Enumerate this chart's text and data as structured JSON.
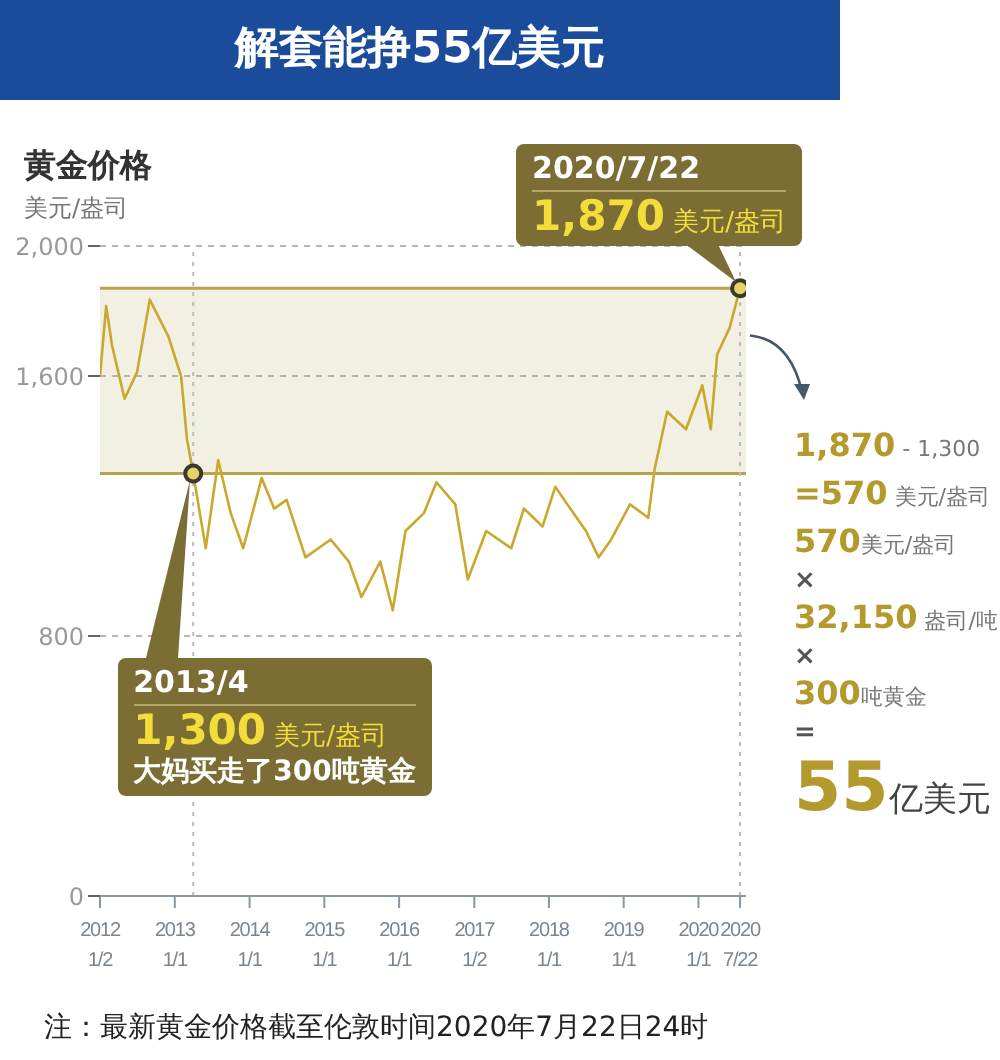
{
  "chart_data": {
    "type": "line",
    "title": "解套能挣55亿美元",
    "subtitle": "美元/盎司",
    "ylabel": "黄金价格",
    "x": [
      "2012-01-02",
      "2012-02",
      "2012-03",
      "2012-05",
      "2012-07",
      "2012-09",
      "2012-12",
      "2013-02",
      "2013-03",
      "2013-04",
      "2013-06",
      "2013-08",
      "2013-10",
      "2013-12",
      "2014-03",
      "2014-05",
      "2014-07",
      "2014-10",
      "2015-02",
      "2015-05",
      "2015-07",
      "2015-10",
      "2015-12",
      "2016-02",
      "2016-05",
      "2016-07",
      "2016-10",
      "2016-12",
      "2017-03",
      "2017-07",
      "2017-09",
      "2017-12",
      "2018-02",
      "2018-04",
      "2018-07",
      "2018-09",
      "2018-11",
      "2019-02",
      "2019-05",
      "2019-06",
      "2019-08",
      "2019-11",
      "2020-01-20",
      "2020-03",
      "2020-04",
      "2020-06",
      "2020-07-22"
    ],
    "series": [
      {
        "color": "#c9a82c",
        "values": [
          1599,
          1815,
          1693,
          1530,
          1612,
          1835,
          1721,
          1599,
          1408,
          1300,
          1070,
          1341,
          1178,
          1070,
          1286,
          1192,
          1219,
          1042,
          1097,
          1029,
          920,
          1029,
          879,
          1123,
          1178,
          1273,
          1205,
          974,
          1123,
          1070,
          1192,
          1137,
          1259,
          1205,
          1123,
          1042,
          1097,
          1205,
          1164,
          1314,
          1490,
          1436,
          1571,
          1436,
          1666,
          1748,
          1870
        ]
      },
      {
        "type": "scatter",
        "color": "#3a3a28",
        "x": [
          "2013-04",
          "2020-07-22"
        ],
        "values": [
          1300,
          1870
        ]
      }
    ],
    "xlim": [
      "2012-01-02",
      "2020-08-20"
    ],
    "xticks": [
      {
        "value": "2012-01-02",
        "label": "2012\n1/2"
      },
      {
        "value": "2013-01-01",
        "label": "2013\n1/1"
      },
      {
        "value": "2014-01-01",
        "label": "2014\n1/1"
      },
      {
        "value": "2015-01-01",
        "label": "2015\n1/1"
      },
      {
        "value": "2016-01-01",
        "label": "2016\n1/1"
      },
      {
        "value": "2017-01-02",
        "label": "2017\n1/2"
      },
      {
        "value": "2018-01-01",
        "label": "2018\n1/1"
      },
      {
        "value": "2019-01-01",
        "label": "2019\n1/1"
      },
      {
        "value": "2020-01-01",
        "label": "2020\n1/1"
      },
      {
        "value": "2020-07-22",
        "label": "2020\n7/22"
      }
    ],
    "ylim": [
      0,
      2000
    ],
    "yticks": [
      0,
      800,
      {
        "value": 1600,
        "label": "1,600"
      },
      {
        "value": 2000,
        "label": "2,000"
      }
    ],
    "grid": "y",
    "bands": [
      {
        "axis": "y",
        "from": 1300,
        "to": 1870,
        "color": "#f2f0e2"
      }
    ],
    "ref_lines": [
      {
        "axis": "y",
        "value": 1870,
        "color": "#b9a34c",
        "line_style": "solid"
      },
      {
        "axis": "y",
        "value": 1300,
        "color": "#b9a34c",
        "line_style": "solid"
      },
      {
        "axis": "x",
        "value": "2013-04",
        "color": "#bbbbbb",
        "line_style": "dotted"
      },
      {
        "axis": "x",
        "value": "2020-07-22",
        "color": "#bbbbbb",
        "line_style": "dotted"
      }
    ],
    "annotations": [
      {
        "text": "2020/7/22\n1,870 美元/盎司",
        "x": "2020-07-22",
        "y": 1870
      },
      {
        "text": "2013/4\n1,300 美元/盎司",
        "x": "2013-04",
        "y": 1300
      },
      "大妈买走了300吨黄金",
      "1,870 - 1,300",
      "=570 美元/盎司",
      "570美元/盎司",
      "×",
      "32,150 盎司/吨",
      "×",
      "300吨黄金",
      "=",
      "55亿美元",
      "注：最新黄金价格截至伦敦时间2020年7月22日24时"
    ]
  }
}
